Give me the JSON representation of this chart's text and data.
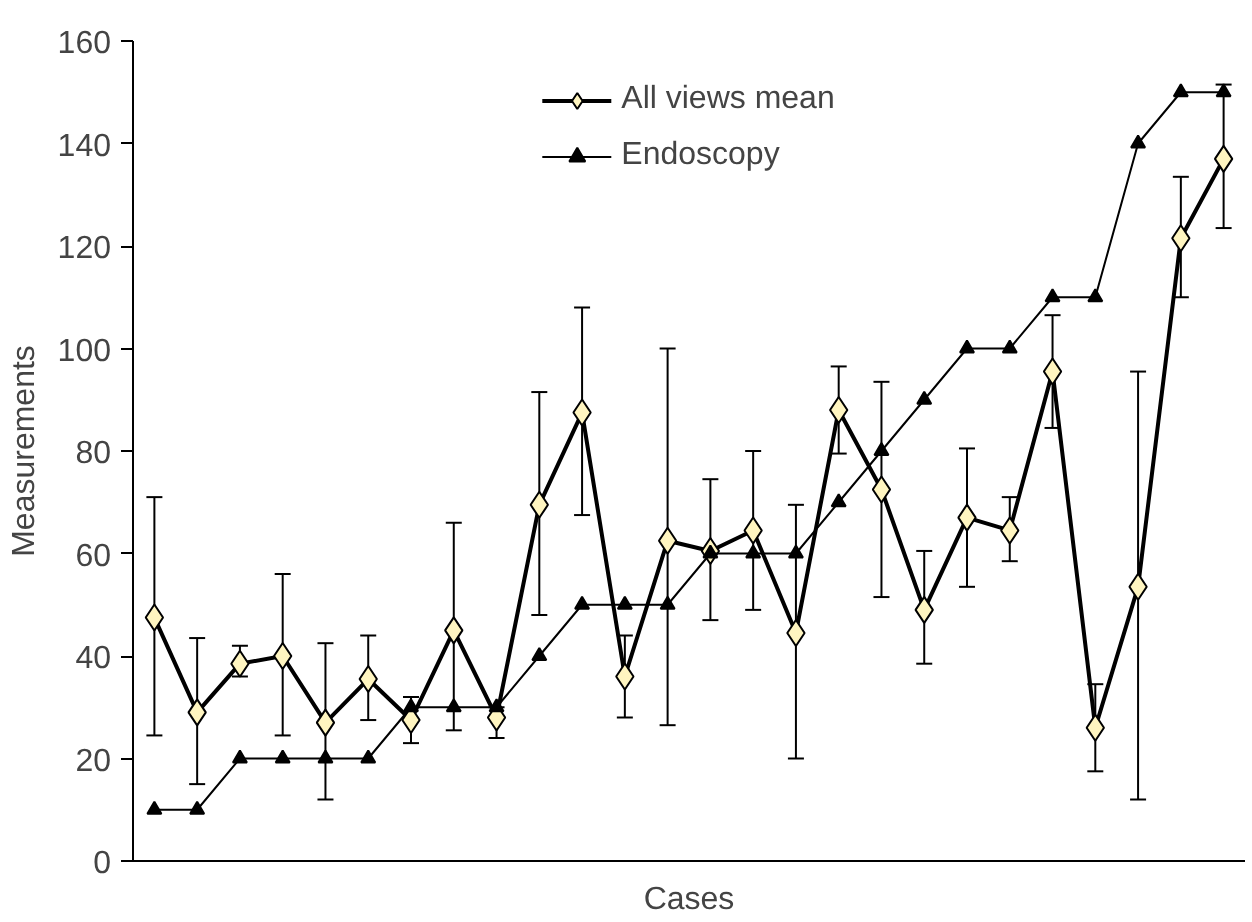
{
  "chart_data": {
    "type": "line",
    "xlabel": "Cases",
    "ylabel": "Measurements",
    "categories": [
      null,
      null,
      null,
      null,
      null,
      null,
      null,
      null,
      null,
      null,
      null,
      null,
      null,
      null,
      null,
      null,
      null,
      null,
      null,
      null,
      null,
      null,
      null,
      null,
      null,
      null
    ],
    "series": [
      {
        "name": "All views mean",
        "color": "#000000",
        "marker": "diamond",
        "values": [
          47.5,
          29,
          38.5,
          40,
          27,
          35.5,
          27.5,
          45,
          28,
          69.5,
          87.5,
          36,
          62.5,
          60.5,
          64.5,
          44.5,
          88,
          72.5,
          49,
          67,
          64.5,
          95.5,
          26,
          53.5,
          121.5,
          137
        ],
        "errors": [
          [
            24.5,
            71
          ],
          [
            15,
            43.5
          ],
          [
            36,
            42
          ],
          [
            24.5,
            56
          ],
          [
            12,
            42.5
          ],
          [
            27.5,
            44
          ],
          [
            23,
            32
          ],
          [
            25.5,
            66
          ],
          [
            24,
            30
          ],
          [
            48,
            91.5
          ],
          [
            67.5,
            108
          ],
          [
            28,
            44
          ],
          [
            26.5,
            100
          ],
          [
            47,
            74.5
          ],
          [
            49,
            80
          ],
          [
            20,
            69.5
          ],
          [
            79.5,
            96.5
          ],
          [
            51.5,
            93.5
          ],
          [
            38.5,
            60.5
          ],
          [
            53.5,
            80.5
          ],
          [
            58.5,
            71
          ],
          [
            84.5,
            106.5
          ],
          [
            17.5,
            34.5
          ],
          [
            12,
            95.5
          ],
          [
            110,
            133.5
          ],
          [
            123.5,
            151.5
          ]
        ]
      },
      {
        "name": "Endoscopy",
        "color": "#000000",
        "marker": "triangle",
        "values": [
          10,
          10,
          20,
          20,
          20,
          20,
          30,
          30,
          30,
          40,
          50,
          50,
          50,
          60,
          60,
          60,
          70,
          80,
          90,
          100,
          100,
          110,
          110,
          140,
          150,
          150
        ]
      }
    ],
    "ylim": [
      0,
      160
    ],
    "yticks": [
      0,
      20,
      40,
      60,
      80,
      100,
      120,
      140,
      160
    ],
    "grid": false,
    "legend": "top"
  }
}
